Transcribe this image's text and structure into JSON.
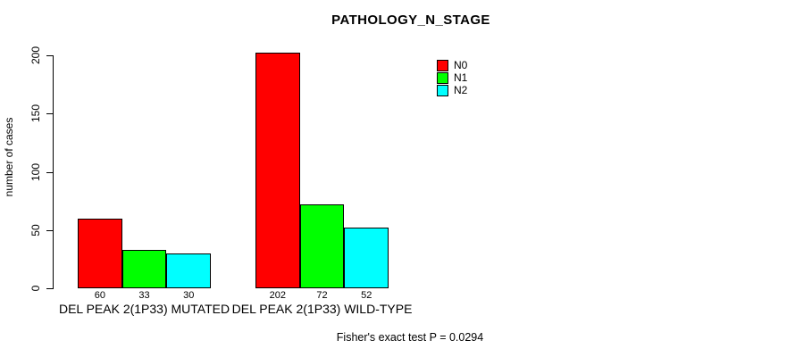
{
  "chart_data": {
    "type": "bar",
    "title": "PATHOLOGY_N_STAGE",
    "ylabel": "number of cases",
    "xlabel": "",
    "ylim": [
      0,
      200
    ],
    "yticks": [
      0,
      50,
      100,
      150,
      200
    ],
    "grid": false,
    "legend_position": "top-right-inside",
    "series_names": [
      "N0",
      "N1",
      "N2"
    ],
    "series_colors": [
      "#FF0000",
      "#00FF00",
      "#00FFFF"
    ],
    "bar_border_color": "#000000",
    "groups": [
      {
        "label": "DEL PEAK 2(1P33) MUTATED",
        "values": [
          60,
          33,
          30
        ]
      },
      {
        "label": "DEL PEAK 2(1P33) WILD-TYPE",
        "values": [
          202,
          72,
          52
        ]
      }
    ],
    "footnote": "Fisher's exact test P = 0.0294"
  }
}
